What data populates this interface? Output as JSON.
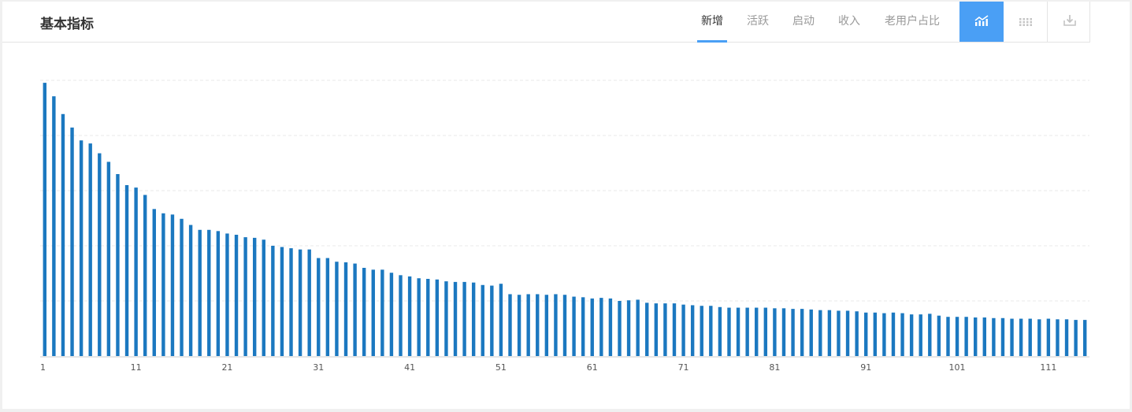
{
  "header": {
    "title": "基本指标",
    "tabs": [
      {
        "label": "新增",
        "active": true
      },
      {
        "label": "活跃",
        "active": false
      },
      {
        "label": "启动",
        "active": false
      },
      {
        "label": "收入",
        "active": false
      },
      {
        "label": "老用户占比",
        "active": false
      }
    ],
    "tools": [
      {
        "icon": "line-chart-icon",
        "active": true
      },
      {
        "icon": "grid-view-icon",
        "active": false
      },
      {
        "icon": "download-icon",
        "active": false
      }
    ]
  },
  "colors": {
    "bar": "#1b78c0",
    "accent": "#4a9ff5",
    "grid": "#e8e8e8"
  },
  "chart_data": {
    "type": "bar",
    "grid": true,
    "ylim": [
      0,
      450
    ],
    "xtick_labels": [
      "1",
      "11",
      "21",
      "31",
      "41",
      "51",
      "61",
      "71",
      "81",
      "91",
      "101",
      "111"
    ],
    "x": [
      1,
      2,
      3,
      4,
      5,
      6,
      7,
      8,
      9,
      10,
      11,
      12,
      13,
      14,
      15,
      16,
      17,
      18,
      19,
      20,
      21,
      22,
      23,
      24,
      25,
      26,
      27,
      28,
      29,
      30,
      31,
      32,
      33,
      34,
      35,
      36,
      37,
      38,
      39,
      40,
      41,
      42,
      43,
      44,
      45,
      46,
      47,
      48,
      49,
      50,
      51,
      52,
      53,
      54,
      55,
      56,
      57,
      58,
      59,
      60,
      61,
      62,
      63,
      64,
      65,
      66,
      67,
      68,
      69,
      70,
      71,
      72,
      73,
      74,
      75,
      76,
      77,
      78,
      79,
      80,
      81,
      82,
      83,
      84,
      85,
      86,
      87,
      88,
      89,
      90,
      91,
      92,
      93,
      94,
      95,
      96,
      97,
      98,
      99,
      100,
      101,
      102,
      103,
      104,
      105,
      106,
      107,
      108,
      109,
      110,
      111,
      112,
      113,
      114,
      115
    ],
    "values": [
      446,
      424,
      395,
      373,
      352,
      347,
      331,
      317,
      297,
      279,
      275,
      263,
      240,
      233,
      231,
      224,
      214,
      206,
      206,
      204,
      200,
      198,
      194,
      193,
      190,
      180,
      178,
      176,
      174,
      174,
      160,
      160,
      154,
      153,
      151,
      144,
      141,
      141,
      136,
      132,
      130,
      127,
      126,
      125,
      122,
      121,
      121,
      120,
      116,
      115,
      118,
      101,
      100,
      101,
      101,
      100,
      101,
      100,
      97,
      96,
      94,
      95,
      94,
      90,
      91,
      92,
      87,
      86,
      86,
      86,
      84,
      83,
      82,
      82,
      80,
      79,
      79,
      79,
      79,
      79,
      78,
      78,
      77,
      77,
      76,
      75,
      75,
      74,
      74,
      73,
      71,
      71,
      70,
      71,
      70,
      68,
      68,
      69,
      66,
      64,
      64,
      64,
      63,
      63,
      62,
      62,
      61,
      61,
      61,
      60,
      61,
      60,
      60,
      59,
      59
    ]
  }
}
